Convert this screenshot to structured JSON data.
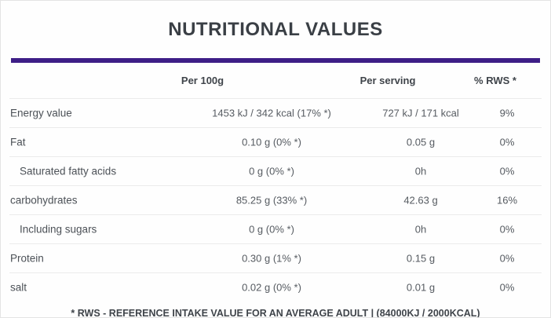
{
  "title": "NUTRITIONAL VALUES",
  "columns": {
    "per_100g": "Per 100g",
    "per_serving": "Per serving",
    "rws": "% RWS *"
  },
  "rows": [
    {
      "label": "Energy value",
      "per_100g": "1453 kJ / 342 kcal (17% *)",
      "per_serving": "727 kJ / 171 kcal",
      "rws": "9%"
    },
    {
      "label": "Fat",
      "per_100g": "0.10 g (0% *)",
      "per_serving": "0.05 g",
      "rws": "0%"
    },
    {
      "label": "Saturated fatty acids",
      "per_100g": "0 g (0% *)",
      "per_serving": "0h",
      "rws": "0%"
    },
    {
      "label": "carbohydrates",
      "per_100g": "85.25 g (33% *)",
      "per_serving": "42.63 g",
      "rws": "16%"
    },
    {
      "label": "Including sugars",
      "per_100g": "0 g (0% *)",
      "per_serving": "0h",
      "rws": "0%"
    },
    {
      "label": "Protein",
      "per_100g": "0.30 g (1% *)",
      "per_serving": "0.15 g",
      "rws": "0%"
    },
    {
      "label": "salt",
      "per_100g": "0.02 g (0% *)",
      "per_serving": "0.01 g",
      "rws": "0%"
    }
  ],
  "footnote": "* RWS - REFERENCE INTAKE VALUE FOR AN AVERAGE ADULT | (84000KJ / 2000KCAL)",
  "colors": {
    "accent_purple": "#3e1e87",
    "row_divider": "#ebebeb",
    "title_text": "#3a3f45",
    "body_text": "#4c5157"
  }
}
